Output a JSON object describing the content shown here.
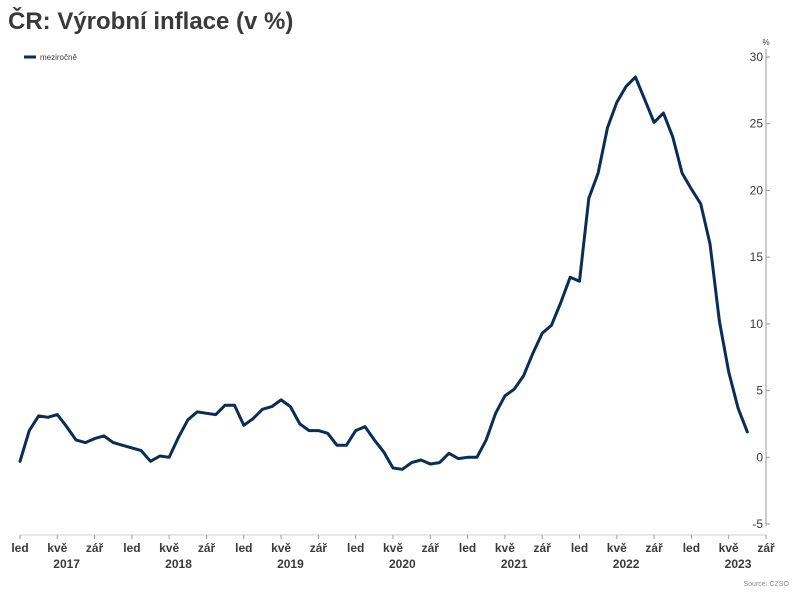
{
  "chart_data": {
    "type": "line",
    "title": "ČR: Výrobní inflace (v %)",
    "y_unit": "%",
    "ylim": [
      -5,
      30
    ],
    "y_ticks": [
      -5,
      0,
      5,
      10,
      15,
      20,
      25,
      30
    ],
    "y_axis_side": "right",
    "grid": false,
    "legend_position": "top-left",
    "source": "Source: CZSO",
    "x_month_labels": [
      "led",
      "kvě",
      "zář"
    ],
    "x_years": [
      "2017",
      "2018",
      "2019",
      "2020",
      "2021",
      "2022",
      "2023"
    ],
    "x_start": "2017-01",
    "x_end": "2023-09",
    "series": [
      {
        "name": "meziročně",
        "color": "#0b2c55",
        "x": [
          "2017-01",
          "2017-02",
          "2017-03",
          "2017-04",
          "2017-05",
          "2017-06",
          "2017-07",
          "2017-08",
          "2017-09",
          "2017-10",
          "2017-11",
          "2017-12",
          "2018-01",
          "2018-02",
          "2018-03",
          "2018-04",
          "2018-05",
          "2018-06",
          "2018-07",
          "2018-08",
          "2018-09",
          "2018-10",
          "2018-11",
          "2018-12",
          "2019-01",
          "2019-02",
          "2019-03",
          "2019-04",
          "2019-05",
          "2019-06",
          "2019-07",
          "2019-08",
          "2019-09",
          "2019-10",
          "2019-11",
          "2019-12",
          "2020-01",
          "2020-02",
          "2020-03",
          "2020-04",
          "2020-05",
          "2020-06",
          "2020-07",
          "2020-08",
          "2020-09",
          "2020-10",
          "2020-11",
          "2020-12",
          "2021-01",
          "2021-02",
          "2021-03",
          "2021-04",
          "2021-05",
          "2021-06",
          "2021-07",
          "2021-08",
          "2021-09",
          "2021-10",
          "2021-11",
          "2021-12",
          "2022-01",
          "2022-02",
          "2022-03",
          "2022-04",
          "2022-05",
          "2022-06",
          "2022-07",
          "2022-08",
          "2022-09",
          "2022-10",
          "2022-11",
          "2022-12",
          "2023-01",
          "2023-02",
          "2023-03",
          "2023-04",
          "2023-05",
          "2023-06",
          "2023-07"
        ],
        "y": [
          -0.3,
          2.0,
          3.1,
          3.0,
          3.2,
          2.3,
          1.3,
          1.1,
          1.4,
          1.6,
          1.1,
          0.9,
          0.7,
          0.5,
          -0.3,
          0.1,
          0.0,
          1.5,
          2.8,
          3.4,
          3.3,
          3.2,
          3.9,
          3.9,
          2.4,
          2.9,
          3.6,
          3.8,
          4.3,
          3.8,
          2.5,
          2.0,
          2.0,
          1.8,
          0.9,
          0.9,
          2.0,
          2.3,
          1.3,
          0.4,
          -0.8,
          -0.9,
          -0.4,
          -0.2,
          -0.5,
          -0.4,
          0.3,
          -0.1,
          0.0,
          0.0,
          1.3,
          3.3,
          4.6,
          5.1,
          6.1,
          7.8,
          9.3,
          9.9,
          11.6,
          13.5,
          13.2,
          19.4,
          21.3,
          24.7,
          26.6,
          27.8,
          28.5,
          26.8,
          25.1,
          25.8,
          24.0,
          21.3,
          20.1,
          19.0,
          16.0,
          10.2,
          6.4,
          3.7,
          1.9
        ]
      }
    ]
  }
}
